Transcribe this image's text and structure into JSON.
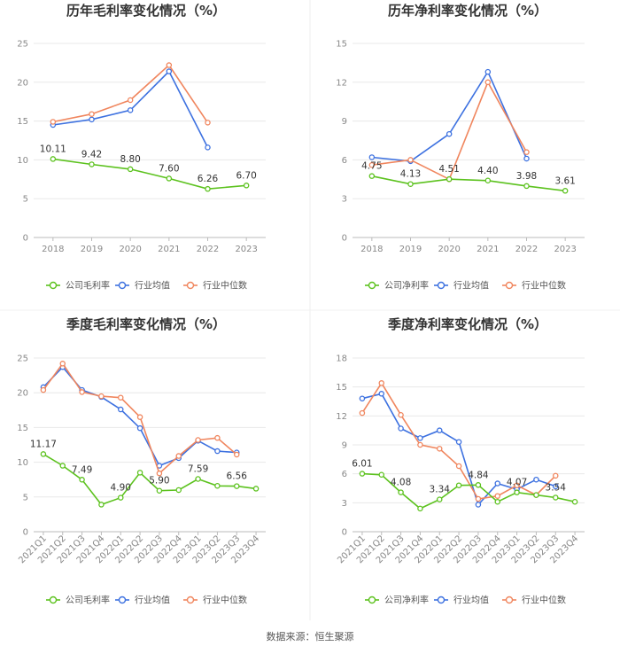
{
  "source": "数据来源：恒生聚源",
  "colors": {
    "company": "#5cc21e",
    "avg": "#3d71e0",
    "median": "#f0865e"
  },
  "chart_data": [
    {
      "type": "line",
      "title": "历年毛利率变化情况（%）",
      "categories": [
        "2018",
        "2019",
        "2020",
        "2021",
        "2022",
        "2023"
      ],
      "yticks": [
        "0",
        "5",
        "10",
        "15",
        "20",
        "25"
      ],
      "ylim": [
        0,
        25
      ],
      "series": [
        {
          "name": "公司毛利率",
          "values": [
            10.11,
            9.42,
            8.8,
            7.6,
            6.26,
            6.7
          ]
        },
        {
          "name": "行业均值",
          "values": [
            14.5,
            15.2,
            16.4,
            21.4,
            11.6,
            null
          ]
        },
        {
          "name": "行业中位数",
          "values": [
            14.9,
            15.9,
            17.7,
            22.2,
            14.8,
            null
          ]
        }
      ],
      "data_labels": [
        "10.11",
        "9.42",
        "8.80",
        "7.60",
        "6.26",
        "6.70"
      ]
    },
    {
      "type": "line",
      "title": "历年净利率变化情况（%）",
      "categories": [
        "2018",
        "2019",
        "2020",
        "2021",
        "2022",
        "2023"
      ],
      "yticks": [
        "0",
        "3",
        "6",
        "9",
        "12",
        "15"
      ],
      "ylim": [
        0,
        15
      ],
      "series": [
        {
          "name": "公司净利率",
          "values": [
            4.75,
            4.13,
            4.51,
            4.4,
            3.98,
            3.61
          ]
        },
        {
          "name": "行业均值",
          "values": [
            6.2,
            5.9,
            8.0,
            12.8,
            6.1,
            null
          ]
        },
        {
          "name": "行业中位数",
          "values": [
            5.6,
            6.0,
            4.5,
            12.0,
            6.6,
            null
          ]
        }
      ],
      "data_labels": [
        "4.75",
        "4.13",
        "4.51",
        "4.40",
        "3.98",
        "3.61"
      ]
    },
    {
      "type": "line",
      "title": "季度毛利率变化情况（%）",
      "categories": [
        "2021Q1",
        "2021Q2",
        "2021Q3",
        "2021Q4",
        "2022Q1",
        "2022Q2",
        "2022Q3",
        "2022Q4",
        "2023Q1",
        "2023Q2",
        "2023Q3",
        "2023Q4"
      ],
      "yticks": [
        "0",
        "5",
        "10",
        "15",
        "20",
        "25"
      ],
      "ylim": [
        0,
        25
      ],
      "series": [
        {
          "name": "公司毛利率",
          "values": [
            11.17,
            9.5,
            7.49,
            3.9,
            4.9,
            8.5,
            5.9,
            6.0,
            7.59,
            6.6,
            6.56,
            6.2
          ]
        },
        {
          "name": "行业均值",
          "values": [
            20.8,
            23.7,
            20.4,
            19.4,
            17.6,
            14.9,
            9.5,
            10.6,
            13.1,
            11.6,
            11.4,
            null
          ]
        },
        {
          "name": "行业中位数",
          "values": [
            20.4,
            24.2,
            20.1,
            19.5,
            19.3,
            16.5,
            8.4,
            10.9,
            13.2,
            13.5,
            11.1,
            null
          ]
        }
      ],
      "data_labels": [
        "11.17",
        "",
        "7.49",
        "",
        "4.90",
        "",
        "5.90",
        "",
        "7.59",
        "",
        "6.56",
        ""
      ]
    },
    {
      "type": "line",
      "title": "季度净利率变化情况（%）",
      "categories": [
        "2021Q1",
        "2021Q2",
        "2021Q3",
        "2021Q4",
        "2022Q1",
        "2022Q2",
        "2022Q3",
        "2022Q4",
        "2023Q1",
        "2023Q2",
        "2023Q3",
        "2023Q4"
      ],
      "yticks": [
        "0",
        "3",
        "6",
        "9",
        "12",
        "15",
        "18"
      ],
      "ylim": [
        0,
        18
      ],
      "series": [
        {
          "name": "公司净利率",
          "values": [
            6.01,
            5.9,
            4.08,
            2.4,
            3.34,
            4.8,
            4.84,
            3.1,
            4.07,
            3.8,
            3.54,
            3.1
          ]
        },
        {
          "name": "行业均值",
          "values": [
            13.8,
            14.3,
            10.7,
            9.7,
            10.5,
            9.3,
            2.8,
            5.0,
            4.4,
            5.4,
            4.7,
            null
          ]
        },
        {
          "name": "行业中位数",
          "values": [
            12.3,
            15.4,
            12.1,
            9.0,
            8.6,
            6.8,
            3.4,
            3.7,
            4.8,
            3.8,
            5.8,
            null
          ]
        }
      ],
      "data_labels": [
        "6.01",
        "",
        "4.08",
        "",
        "3.34",
        "",
        "4.84",
        "",
        "4.07",
        "",
        "3.54",
        ""
      ]
    }
  ]
}
